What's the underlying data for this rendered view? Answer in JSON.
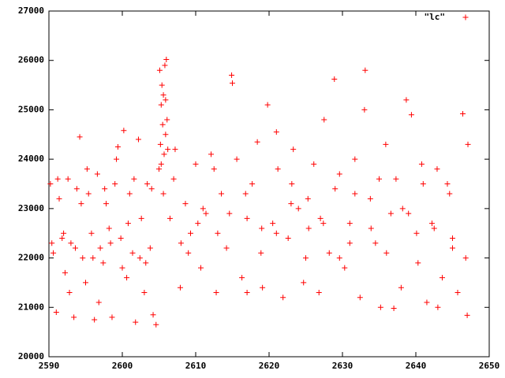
{
  "chart_data": {
    "type": "scatter",
    "xlim": [
      2590,
      2650
    ],
    "xticks": [
      2590,
      2600,
      2610,
      2620,
      2630,
      2640,
      2650
    ],
    "ylim": [
      20000,
      27000
    ],
    "yticks": [
      20000,
      21000,
      22000,
      23000,
      24000,
      25000,
      26000,
      27000
    ],
    "legend": "top-right",
    "x": [
      2590.2,
      2590.6,
      2591.0,
      2591.4,
      2591.8,
      2592.2,
      2592.6,
      2593.0,
      2593.4,
      2593.8,
      2594.2,
      2594.6,
      2595.0,
      2595.4,
      2595.8,
      2596.2,
      2596.6,
      2597.0,
      2597.4,
      2597.8,
      2598.2,
      2598.6,
      2599.0,
      2599.4,
      2599.8,
      2600.2,
      2600.6,
      2601.0,
      2601.4,
      2601.8,
      2602.2,
      2602.6,
      2603.0,
      2603.4,
      2603.8,
      2604.2,
      2604.6,
      2590.4,
      2591.2,
      2592.0,
      2592.8,
      2593.6,
      2594.4,
      2595.2,
      2596.0,
      2596.8,
      2597.6,
      2598.4,
      2599.2,
      2600.0,
      2600.8,
      2601.6,
      2602.4,
      2603.2,
      2604.0,
      2605.0,
      2605.1,
      2605.2,
      2605.3,
      2605.4,
      2605.5,
      2605.6,
      2605.7,
      2605.8,
      2605.9,
      2606.0,
      2606.1,
      2606.2,
      2605.3,
      2605.6,
      2605.9,
      2606.5,
      2607.2,
      2607.9,
      2608.6,
      2609.3,
      2610.0,
      2610.7,
      2611.4,
      2612.1,
      2612.8,
      2613.5,
      2614.2,
      2614.9,
      2615.6,
      2616.3,
      2617.0,
      2617.7,
      2618.4,
      2619.1,
      2619.8,
      2620.5,
      2621.2,
      2621.9,
      2622.6,
      2623.3,
      2624.0,
      2624.7,
      2625.4,
      2626.1,
      2626.8,
      2627.5,
      2628.2,
      2628.9,
      2629.6,
      2630.3,
      2631.0,
      2631.7,
      2632.4,
      2633.1,
      2633.8,
      2634.5,
      2635.2,
      2635.9,
      2636.6,
      2637.3,
      2638.0,
      2638.7,
      2639.4,
      2640.1,
      2640.8,
      2641.5,
      2642.2,
      2642.9,
      2643.6,
      2644.3,
      2645.0,
      2645.7,
      2646.4,
      2647.1,
      2607.0,
      2609.0,
      2611.0,
      2613.0,
      2615.0,
      2617.0,
      2619.0,
      2621.0,
      2623.0,
      2625.0,
      2627.0,
      2629.0,
      2631.0,
      2633.0,
      2635.0,
      2637.0,
      2639.0,
      2641.0,
      2643.0,
      2645.0,
      2647.0,
      2608.0,
      2610.3,
      2612.5,
      2614.6,
      2616.8,
      2618.9,
      2621.0,
      2623.1,
      2625.3,
      2627.4,
      2629.6,
      2631.7,
      2633.9,
      2636.0,
      2638.2,
      2640.3,
      2642.5,
      2644.6,
      2646.8
    ],
    "series": [
      {
        "name": "\"lc\"",
        "color": "#ff0000",
        "values": [
          23500,
          22100,
          20900,
          23200,
          22400,
          21700,
          23600,
          22300,
          20800,
          23400,
          24450,
          22000,
          21500,
          23300,
          22500,
          20750,
          23700,
          22200,
          21900,
          23100,
          22600,
          20800,
          23500,
          24250,
          22400,
          24580,
          21600,
          23300,
          22100,
          20700,
          24400,
          22800,
          21300,
          23500,
          22200,
          20850,
          20650,
          22300,
          23600,
          22500,
          21300,
          22200,
          23100,
          23800,
          22000,
          21100,
          23400,
          22300,
          24000,
          21800,
          22700,
          23600,
          22000,
          21900,
          23400,
          23800,
          25800,
          24300,
          25100,
          25500,
          24700,
          25300,
          24100,
          25900,
          24500,
          26020,
          24800,
          24200,
          23900,
          23300,
          25200,
          22800,
          24200,
          21400,
          23100,
          22500,
          23900,
          21800,
          22900,
          24100,
          21300,
          23300,
          22200,
          25700,
          24000,
          21600,
          22800,
          23500,
          24350,
          21400,
          25100,
          22700,
          23800,
          21200,
          22400,
          24200,
          23000,
          21500,
          22600,
          23900,
          21300,
          24800,
          22100,
          25620,
          23700,
          21800,
          22700,
          24000,
          21200,
          25800,
          23200,
          22300,
          21000,
          24300,
          22900,
          23600,
          21400,
          25200,
          24900,
          22500,
          23900,
          21100,
          22700,
          23800,
          21600,
          23500,
          22200,
          21300,
          24920,
          24300,
          23600,
          22100,
          23000,
          22500,
          25540,
          21300,
          22600,
          24550,
          23100,
          22000,
          22800,
          23400,
          22300,
          25000,
          23600,
          20980,
          22900,
          23500,
          21000,
          22400,
          20840,
          22300,
          22700,
          23800,
          22900,
          23300,
          22100,
          22500,
          23500,
          23200,
          22700,
          22000,
          23300,
          22600,
          22100,
          23000,
          21900,
          22600,
          23300,
          22000
        ]
      }
    ]
  }
}
